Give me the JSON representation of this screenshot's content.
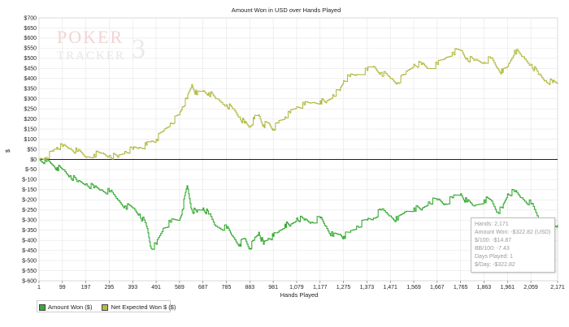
{
  "chart_data": {
    "type": "line",
    "title": "Amount Won in USD over Hands Played",
    "xlabel": "Hands Played",
    "ylabel": "$",
    "xlim": [
      1,
      2171
    ],
    "ylim": [
      -600,
      700
    ],
    "yticks": [
      700,
      650,
      600,
      550,
      500,
      450,
      400,
      350,
      300,
      250,
      200,
      150,
      100,
      50,
      0,
      -50,
      -100,
      -150,
      -200,
      -250,
      -300,
      -350,
      -400,
      -450,
      -500,
      -550,
      -600
    ],
    "ytick_labels": [
      "$700",
      "$650",
      "$600",
      "$550",
      "$500",
      "$450",
      "$400",
      "$350",
      "$300",
      "$250",
      "$200",
      "$150",
      "$100",
      "$50",
      "$0",
      "$-50",
      "$-100",
      "$-150",
      "$-200",
      "$-250",
      "$-300",
      "$-350",
      "$-400",
      "$-450",
      "$-500",
      "$-550",
      "$-600"
    ],
    "xticks": [
      1,
      99,
      197,
      295,
      393,
      491,
      589,
      687,
      785,
      883,
      981,
      1079,
      1177,
      1275,
      1373,
      1471,
      1569,
      1667,
      1765,
      1863,
      1961,
      2059,
      2171
    ],
    "xtick_labels": [
      "1",
      "99",
      "197",
      "295",
      "393",
      "491",
      "589",
      "687",
      "785",
      "883",
      "981",
      "1,079",
      "1,177",
      "1,275",
      "1,373",
      "1,471",
      "1,569",
      "1,667",
      "1,765",
      "1,863",
      "1,961",
      "2,059",
      "2,171"
    ],
    "grid": true,
    "legend_position": "bottom-left",
    "series": [
      {
        "name": "Amount Won ($)",
        "color": "#39a935",
        "x": [
          1,
          30,
          60,
          75,
          99,
          130,
          160,
          197,
          230,
          260,
          295,
          330,
          360,
          393,
          420,
          450,
          470,
          491,
          520,
          550,
          589,
          600,
          620,
          640,
          660,
          687,
          710,
          740,
          785,
          810,
          840,
          860,
          883,
          900,
          920,
          940,
          960,
          981,
          1000,
          1030,
          1050,
          1079,
          1110,
          1140,
          1177,
          1200,
          1230,
          1260,
          1275,
          1300,
          1330,
          1373,
          1400,
          1430,
          1471,
          1500,
          1530,
          1569,
          1600,
          1630,
          1667,
          1700,
          1730,
          1765,
          1790,
          1820,
          1863,
          1890,
          1920,
          1940,
          1961,
          1990,
          2020,
          2059,
          2090,
          2120,
          2150,
          2171
        ],
        "y": [
          0,
          -10,
          -30,
          -40,
          -50,
          -80,
          -110,
          -120,
          -140,
          -150,
          -160,
          -200,
          -230,
          -240,
          -270,
          -330,
          -440,
          -420,
          -340,
          -310,
          -300,
          -250,
          -130,
          -250,
          -260,
          -240,
          -270,
          -330,
          -340,
          -380,
          -420,
          -390,
          -440,
          -400,
          -360,
          -420,
          -390,
          -380,
          -360,
          -320,
          -330,
          -290,
          -300,
          -310,
          -290,
          -330,
          -380,
          -370,
          -380,
          -360,
          -330,
          -300,
          -290,
          -250,
          -280,
          -300,
          -260,
          -240,
          -250,
          -210,
          -200,
          -220,
          -190,
          -170,
          -210,
          -230,
          -200,
          -200,
          -260,
          -240,
          -170,
          -160,
          -190,
          -220,
          -290,
          -310,
          -330,
          -323
        ]
      },
      {
        "name": "Net Expected Won $ ($)",
        "color": "#b3bb46",
        "x": [
          1,
          30,
          60,
          75,
          99,
          130,
          160,
          197,
          230,
          260,
          295,
          330,
          360,
          393,
          420,
          450,
          470,
          491,
          520,
          550,
          589,
          600,
          620,
          640,
          660,
          687,
          710,
          740,
          785,
          810,
          840,
          860,
          883,
          900,
          920,
          940,
          960,
          981,
          1000,
          1030,
          1050,
          1079,
          1110,
          1140,
          1177,
          1200,
          1230,
          1260,
          1275,
          1300,
          1330,
          1373,
          1400,
          1430,
          1471,
          1500,
          1530,
          1569,
          1600,
          1630,
          1667,
          1700,
          1730,
          1765,
          1790,
          1820,
          1863,
          1890,
          1920,
          1940,
          1961,
          1990,
          2020,
          2059,
          2090,
          2120,
          2150,
          2171
        ],
        "y": [
          0,
          10,
          40,
          60,
          65,
          55,
          40,
          10,
          25,
          30,
          20,
          10,
          40,
          50,
          60,
          70,
          90,
          100,
          140,
          180,
          220,
          260,
          300,
          370,
          320,
          340,
          330,
          300,
          270,
          250,
          210,
          180,
          160,
          200,
          220,
          170,
          180,
          150,
          180,
          210,
          230,
          260,
          270,
          280,
          290,
          280,
          320,
          340,
          390,
          410,
          420,
          440,
          460,
          430,
          400,
          380,
          420,
          470,
          470,
          450,
          470,
          500,
          530,
          540,
          500,
          490,
          480,
          500,
          450,
          430,
          460,
          540,
          510,
          470,
          420,
          390,
          380,
          380
        ]
      }
    ],
    "annotation": {
      "hands": "Hands: 2,171",
      "amount_won": "Amount Won: -$322.82 (USD)",
      "per_100": "$/100: -$14.87",
      "bb_100": "BB/100: -7.43",
      "days_played": "Days Played: 1",
      "per_day": "$/Day: -$322.82"
    }
  },
  "watermark": {
    "line1": "POKER",
    "line2": "TRACKER",
    "digit": "3"
  }
}
